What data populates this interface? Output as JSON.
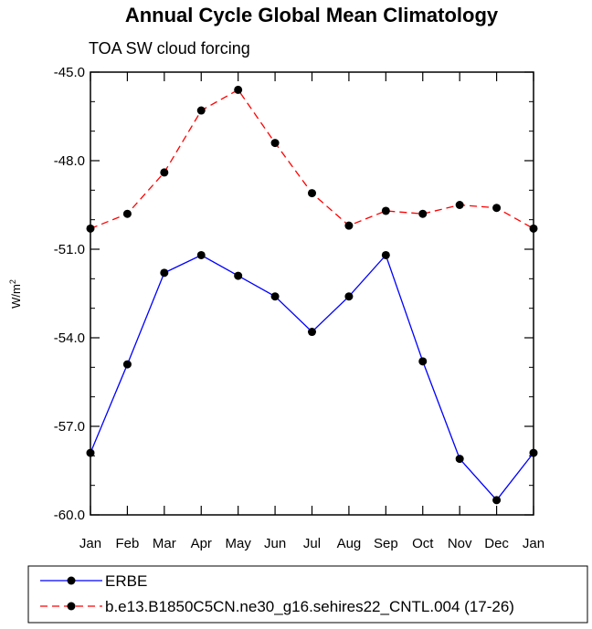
{
  "chart_data": {
    "type": "line",
    "title": "Annual Cycle Global Mean Climatology",
    "subtitle": "TOA SW cloud forcing",
    "ylabel": "W/m",
    "ylabel_sup": "2",
    "xlabel": "",
    "categories": [
      "Jan",
      "Feb",
      "Mar",
      "Apr",
      "May",
      "Jun",
      "Jul",
      "Aug",
      "Sep",
      "Oct",
      "Nov",
      "Dec",
      "Jan"
    ],
    "yticks": [
      "-45.0",
      "-48.0",
      "-51.0",
      "-54.0",
      "-57.0",
      "-60.0"
    ],
    "ylim": [
      -60.0,
      -45.0
    ],
    "grid": false,
    "legend_position": "bottom",
    "series": [
      {
        "name": "ERBE",
        "color": "#0000ff",
        "dash": "solid",
        "values": [
          -57.9,
          -54.9,
          -51.8,
          -51.2,
          -51.9,
          -52.6,
          -53.8,
          -52.6,
          -51.2,
          -54.8,
          -58.1,
          -59.5,
          -57.9
        ]
      },
      {
        "name": "b.e13.B1850C5CN.ne30_g16.sehires22_CNTL.004 (17-26)",
        "color": "#ff0000",
        "dash": "dashed",
        "values": [
          -50.3,
          -49.8,
          -48.4,
          -46.3,
          -45.6,
          -47.4,
          -49.1,
          -50.2,
          -49.7,
          -49.8,
          -49.5,
          -49.6,
          -50.3
        ]
      }
    ]
  }
}
